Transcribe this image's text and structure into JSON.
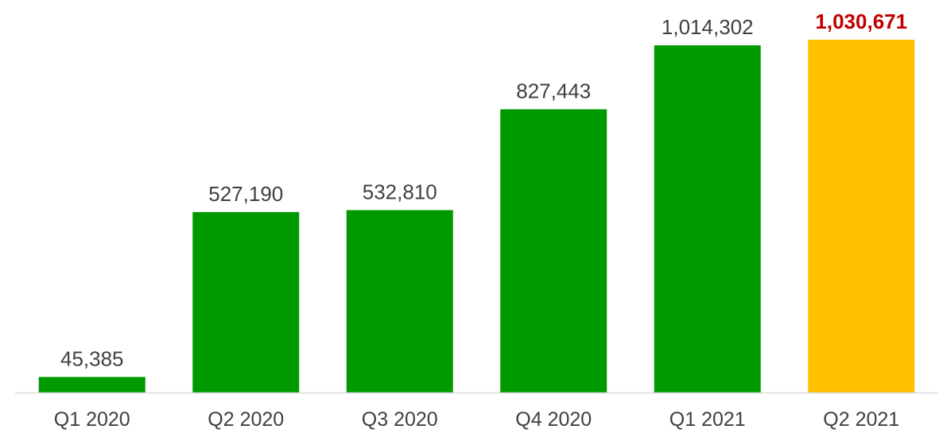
{
  "chart_data": {
    "type": "bar",
    "categories": [
      "Q1 2020",
      "Q2 2020",
      "Q3 2020",
      "Q4 2020",
      "Q1 2021",
      "Q2 2021"
    ],
    "values": [
      45385,
      527190,
      532810,
      827443,
      1014302,
      1030671
    ],
    "data_labels": [
      "45,385",
      "527,190",
      "532,810",
      "827,443",
      "1,014,302",
      "1,030,671"
    ],
    "highlight_index": 5,
    "title": "",
    "xlabel": "",
    "ylabel": "",
    "ylim": [
      0,
      1030671
    ],
    "grid": false,
    "legend": "none",
    "colors": {
      "bar": "#009900",
      "highlight_bar": "#FFC000",
      "highlight_label": "#C00000",
      "label": "#404040",
      "axis": "#D9D9D9"
    }
  }
}
